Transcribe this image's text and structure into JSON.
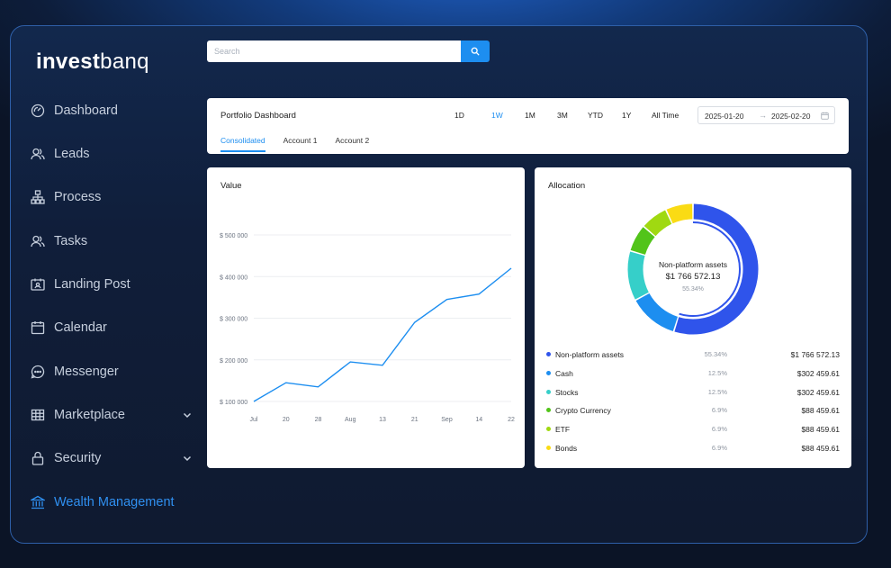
{
  "brand": {
    "bold": "invest",
    "light": "banq"
  },
  "sidebar": {
    "items": [
      {
        "label": "Dashboard",
        "icon": "dashboard-icon"
      },
      {
        "label": "Leads",
        "icon": "users-icon"
      },
      {
        "label": "Process",
        "icon": "hierarchy-icon"
      },
      {
        "label": "Tasks",
        "icon": "users-icon"
      },
      {
        "label": "Landing Post",
        "icon": "id-card-icon"
      },
      {
        "label": "Calendar",
        "icon": "calendar-icon"
      },
      {
        "label": "Messenger",
        "icon": "chat-icon"
      },
      {
        "label": "Marketplace",
        "icon": "table-icon",
        "expand": "down"
      },
      {
        "label": "Security",
        "icon": "lock-icon",
        "expand": "down"
      },
      {
        "label": "Wealth Management",
        "icon": "bank-icon",
        "expand": "up",
        "active": true
      }
    ]
  },
  "search": {
    "placeholder": "Search",
    "value": ""
  },
  "dashboard": {
    "title": "Portfolio Dashboard",
    "ranges": [
      "1D",
      "1W",
      "1M",
      "3M",
      "YTD",
      "1Y",
      "All Time"
    ],
    "active_range": "1W",
    "date_from": "2025-01-20",
    "date_to": "2025-02-20",
    "tabs": [
      "Consolidated",
      "Account 1",
      "Account 2"
    ],
    "active_tab": "Consolidated"
  },
  "value_card": {
    "title": "Value"
  },
  "allocation_card": {
    "title": "Allocation",
    "center_label": "Non-platform assets",
    "center_amount": "$1 766 572.13",
    "center_pct": "55.34%",
    "items": [
      {
        "name": "Non-platform assets",
        "pct": "55.34%",
        "amount": "$1 766 572.13",
        "color": "#2f54eb"
      },
      {
        "name": "Cash",
        "pct": "12.5%",
        "amount": "$302 459.61",
        "color": "#1d8ef0"
      },
      {
        "name": "Stocks",
        "pct": "12.5%",
        "amount": "$302 459.61",
        "color": "#36cfc9"
      },
      {
        "name": "Crypto Currency",
        "pct": "6.9%",
        "amount": "$88 459.61",
        "color": "#52c41a"
      },
      {
        "name": "ETF",
        "pct": "6.9%",
        "amount": "$88 459.61",
        "color": "#a0d911"
      },
      {
        "name": "Bonds",
        "pct": "6.9%",
        "amount": "$88 459.61",
        "color": "#fadb14"
      }
    ]
  },
  "chart_data": [
    {
      "type": "line",
      "title": "Value",
      "x": [
        "Jul",
        "20",
        "28",
        "Aug",
        "13",
        "21",
        "Sep",
        "14",
        "22"
      ],
      "series": [
        {
          "values": [
            100000,
            145000,
            135000,
            195000,
            187000,
            290000,
            345000,
            358000,
            420000
          ]
        }
      ],
      "yticks": [
        "$ 100 000",
        "$ 200 000",
        "$ 300 000",
        "$ 400 000",
        "$ 500 000"
      ],
      "ylim": [
        100000,
        500000
      ],
      "grid": true,
      "color": "#1d8ef0"
    },
    {
      "type": "pie",
      "title": "Allocation",
      "labels": [
        "Non-platform assets",
        "Cash",
        "Stocks",
        "Crypto Currency",
        "ETF",
        "Bonds"
      ],
      "values": [
        55.34,
        12.5,
        12.5,
        6.9,
        6.9,
        6.9
      ],
      "colors": [
        "#2f54eb",
        "#1d8ef0",
        "#36cfc9",
        "#52c41a",
        "#a0d911",
        "#fadb14"
      ]
    }
  ]
}
